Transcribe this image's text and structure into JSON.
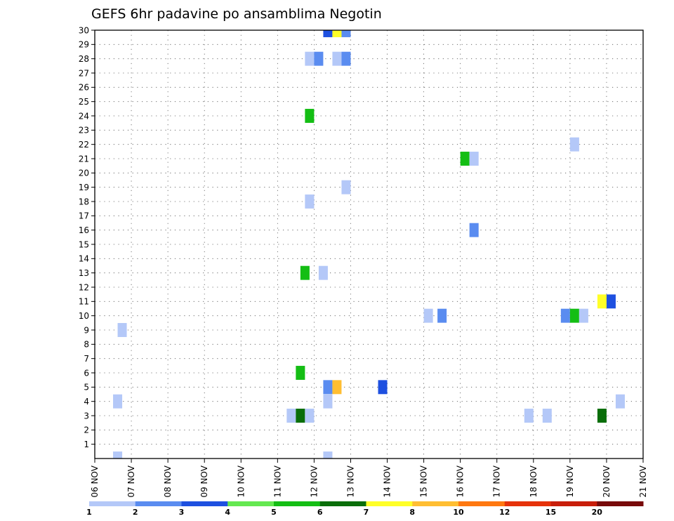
{
  "chart_data": {
    "type": "heatmap",
    "title": "GEFS 6hr padavine po ansamblima Negotin",
    "x_tick_labels": [
      "06 NOV",
      "07 NOV",
      "08 NOV",
      "09 NOV",
      "10 NOV",
      "11 NOV",
      "12 NOV",
      "13 NOV",
      "14 NOV",
      "15 NOV",
      "16 NOV",
      "17 NOV",
      "18 NOV",
      "19 NOV",
      "20 NOV",
      "21 NOV"
    ],
    "y_tick_labels": [
      "1",
      "2",
      "3",
      "4",
      "5",
      "6",
      "7",
      "8",
      "9",
      "10",
      "11",
      "12",
      "13",
      "14",
      "15",
      "16",
      "17",
      "18",
      "19",
      "20",
      "21",
      "22",
      "23",
      "24",
      "25",
      "26",
      "27",
      "28",
      "29",
      "30"
    ],
    "grid": true,
    "xlim": [
      0,
      60
    ],
    "ylim": [
      0,
      30
    ],
    "color_scale": {
      "levels": [
        "1",
        "2",
        "3",
        "4",
        "5",
        "6",
        "7",
        "8",
        "10",
        "12",
        "15",
        "20"
      ],
      "colors": [
        "#b4c8f8",
        "#5a8cf0",
        "#1e50e0",
        "#64e850",
        "#14be14",
        "#0a6e0a",
        "#ffff28",
        "#ffbe32",
        "#ff7810",
        "#e6320a",
        "#c81e0a",
        "#780a0a"
      ]
    },
    "cells": [
      {
        "x": 1.25,
        "y": 0,
        "v": 1
      },
      {
        "x": 1.25,
        "y": 4,
        "v": 1
      },
      {
        "x": 1.5,
        "y": 9,
        "v": 1
      },
      {
        "x": 10.75,
        "y": 3,
        "v": 1
      },
      {
        "x": 11.25,
        "y": 3,
        "v": 6
      },
      {
        "x": 11.25,
        "y": 6,
        "v": 5
      },
      {
        "x": 11.5,
        "y": 13,
        "v": 5
      },
      {
        "x": 11.75,
        "y": 3,
        "v": 1
      },
      {
        "x": 11.75,
        "y": 18,
        "v": 1
      },
      {
        "x": 11.75,
        "y": 24,
        "v": 5
      },
      {
        "x": 11.75,
        "y": 28,
        "v": 1
      },
      {
        "x": 12.25,
        "y": 28,
        "v": 2
      },
      {
        "x": 12.5,
        "y": 13,
        "v": 1
      },
      {
        "x": 12.75,
        "y": 0,
        "v": 1
      },
      {
        "x": 12.75,
        "y": 4,
        "v": 1
      },
      {
        "x": 12.75,
        "y": 5,
        "v": 2
      },
      {
        "x": 12.75,
        "y": 30,
        "v": 3
      },
      {
        "x": 13.25,
        "y": 5,
        "v": 8
      },
      {
        "x": 13.25,
        "y": 28,
        "v": 1
      },
      {
        "x": 13.25,
        "y": 30,
        "v": 7
      },
      {
        "x": 13.75,
        "y": 19,
        "v": 1
      },
      {
        "x": 13.75,
        "y": 28,
        "v": 2
      },
      {
        "x": 13.75,
        "y": 30,
        "v": 2
      },
      {
        "x": 15.75,
        "y": 5,
        "v": 3
      },
      {
        "x": 18.25,
        "y": 10,
        "v": 1
      },
      {
        "x": 19,
        "y": 10,
        "v": 2
      },
      {
        "x": 20.25,
        "y": 21,
        "v": 5
      },
      {
        "x": 20.75,
        "y": 16,
        "v": 2
      },
      {
        "x": 20.75,
        "y": 21,
        "v": 1
      },
      {
        "x": 23.75,
        "y": 3,
        "v": 1
      },
      {
        "x": 24.75,
        "y": 3,
        "v": 1
      },
      {
        "x": 25.75,
        "y": 10,
        "v": 2
      },
      {
        "x": 26.25,
        "y": 10,
        "v": 5
      },
      {
        "x": 26.25,
        "y": 22,
        "v": 1
      },
      {
        "x": 26.75,
        "y": 10,
        "v": 1
      },
      {
        "x": 27.75,
        "y": 3,
        "v": 6
      },
      {
        "x": 27.75,
        "y": 11,
        "v": 7
      },
      {
        "x": 28.25,
        "y": 11,
        "v": 3
      },
      {
        "x": 28.75,
        "y": 4,
        "v": 1
      }
    ]
  }
}
